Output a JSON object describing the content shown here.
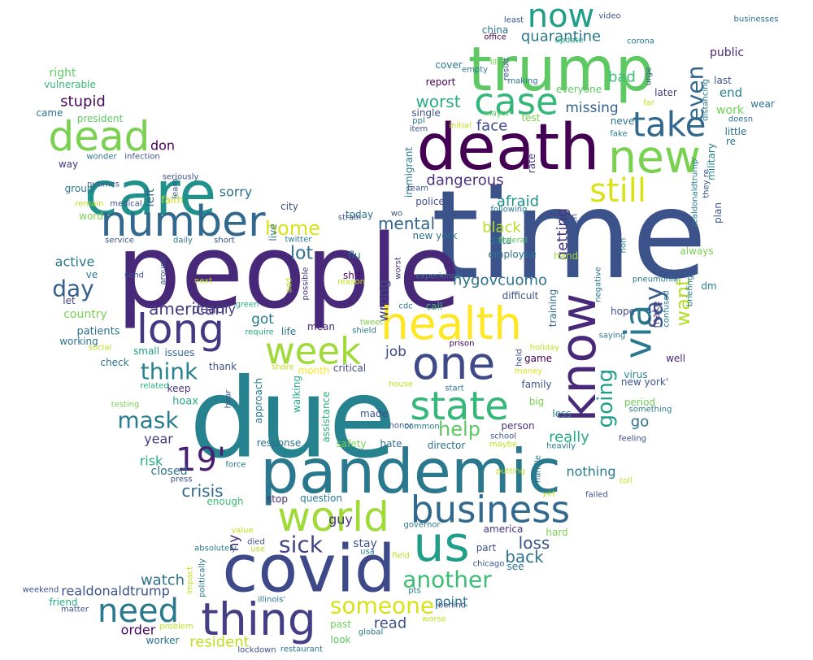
{
  "wordcloud": {
    "words": [
      {
        "text": "time",
        "color": "#3b528b"
      },
      {
        "text": "people",
        "color": "#482878"
      },
      {
        "text": "due",
        "color": "#26828e"
      },
      {
        "text": "death",
        "color": "#440154"
      },
      {
        "text": "trump",
        "color": "#5ec962"
      },
      {
        "text": "pandemic",
        "color": "#2a788e"
      },
      {
        "text": "covid",
        "color": "#3e4989"
      },
      {
        "text": "care",
        "color": "#21918c"
      },
      {
        "text": "know",
        "color": "#482878"
      },
      {
        "text": "new",
        "color": "#7ad151"
      },
      {
        "text": "health",
        "color": "#fde725"
      },
      {
        "text": "one",
        "color": "#3e4989"
      },
      {
        "text": "number",
        "color": "#31688e"
      },
      {
        "text": "long",
        "color": "#443983"
      },
      {
        "text": "state",
        "color": "#35b779"
      },
      {
        "text": "world",
        "color": "#a0da39"
      },
      {
        "text": "business",
        "color": "#31688e"
      },
      {
        "text": "us",
        "color": "#1f9e89"
      },
      {
        "text": "thing",
        "color": "#433e85"
      },
      {
        "text": "dead",
        "color": "#7ad151"
      },
      {
        "text": "case",
        "color": "#35b779"
      },
      {
        "text": "take",
        "color": "#31688e"
      },
      {
        "text": "week",
        "color": "#a0da39"
      },
      {
        "text": "via",
        "color": "#2a788e"
      },
      {
        "text": "now",
        "color": "#1f9e89"
      },
      {
        "text": "need",
        "color": "#2a788e"
      },
      {
        "text": "still",
        "color": "#d8e219"
      },
      {
        "text": "someone",
        "color": "#d8e219"
      },
      {
        "text": "even",
        "color": "#31688e"
      },
      {
        "text": "mask",
        "color": "#287c8e"
      },
      {
        "text": "19'",
        "color": "#481f70"
      },
      {
        "text": "day",
        "color": "#355f8d"
      },
      {
        "text": "think",
        "color": "#26828e"
      },
      {
        "text": "going",
        "color": "#1f9e89"
      },
      {
        "text": "say",
        "color": "#38588c"
      },
      {
        "text": "sick",
        "color": "#414487"
      },
      {
        "text": "help",
        "color": "#5ec962"
      },
      {
        "text": "another",
        "color": "#3dbc74"
      },
      {
        "text": "home",
        "color": "#d8e219"
      },
      {
        "text": "want",
        "color": "#b5de2b"
      },
      {
        "text": "american",
        "color": "#443983"
      },
      {
        "text": "nygovcuomo",
        "color": "#2c728e"
      },
      {
        "text": "back",
        "color": "#2c728e"
      },
      {
        "text": "loss",
        "color": "#3b528b"
      },
      {
        "text": "crisis",
        "color": "#31688e"
      },
      {
        "text": "lot",
        "color": "#2c728e"
      },
      {
        "text": "mental",
        "color": "#33638d"
      },
      {
        "text": "quarantine",
        "color": "#2a788e"
      },
      {
        "text": "missing",
        "color": "#33638d"
      },
      {
        "text": "face",
        "color": "#3e4989"
      },
      {
        "text": "bad",
        "color": "#3dbc74"
      },
      {
        "text": "worst",
        "color": "#29af7f"
      },
      {
        "text": "dangerous",
        "color": "#46327e"
      },
      {
        "text": "afraid",
        "color": "#218f8d"
      },
      {
        "text": "getting",
        "color": "#46327e"
      },
      {
        "text": "black",
        "color": "#b5de2b"
      },
      {
        "text": "stupid",
        "color": "#46085c"
      },
      {
        "text": "don",
        "color": "#440154"
      },
      {
        "text": "sorry",
        "color": "#2c728e"
      },
      {
        "text": "year",
        "color": "#453781"
      },
      {
        "text": "watch",
        "color": "#2c728e"
      },
      {
        "text": "realdonaldtrump",
        "color": "#3b528b"
      },
      {
        "text": "resident",
        "color": "#c2df23"
      },
      {
        "text": "order",
        "color": "#46085c"
      },
      {
        "text": "nothing",
        "color": "#2a788e"
      },
      {
        "text": "really",
        "color": "#25ab82"
      },
      {
        "text": "go",
        "color": "#2c728e"
      },
      {
        "text": "risk",
        "color": "#25ab82"
      },
      {
        "text": "closed",
        "color": "#2c728e"
      },
      {
        "text": "active",
        "color": "#2a788e"
      },
      {
        "text": "deadly",
        "color": "#433e85"
      },
      {
        "text": "got",
        "color": "#287c8e"
      },
      {
        "text": "wrong",
        "color": "#414487"
      },
      {
        "text": "job",
        "color": "#3e4989"
      },
      {
        "text": "read",
        "color": "#3b528b"
      },
      {
        "text": "point",
        "color": "#2a788e"
      },
      {
        "text": "ny",
        "color": "#482878"
      },
      {
        "text": "guy",
        "color": "#46327e"
      },
      {
        "text": "stay",
        "color": "#3b528b"
      },
      {
        "text": "left",
        "color": "#33638d"
      },
      {
        "text": "end",
        "color": "#26828e"
      },
      {
        "text": "public",
        "color": "#482878"
      },
      {
        "text": "work",
        "color": "#6ece58"
      },
      {
        "text": "right",
        "color": "#5ec962"
      },
      {
        "text": "vulnerable",
        "color": "#35b779"
      },
      {
        "text": "president",
        "color": "#5ec962"
      },
      {
        "text": "came",
        "color": "#2c728e"
      },
      {
        "text": "country",
        "color": "#7ad151"
      },
      {
        "text": "patients",
        "color": "#2c728e"
      },
      {
        "text": "working",
        "color": "#2c728e"
      },
      {
        "text": "check",
        "color": "#2c728e"
      },
      {
        "text": "hoax",
        "color": "#25ab82"
      },
      {
        "text": "keep",
        "color": "#46327e"
      },
      {
        "text": "thank",
        "color": "#3b528b"
      },
      {
        "text": "small",
        "color": "#1f9e89"
      },
      {
        "text": "issues",
        "color": "#31688e"
      },
      {
        "text": "approach",
        "color": "#287c8e"
      },
      {
        "text": "walking",
        "color": "#22a884"
      },
      {
        "text": "assistance",
        "color": "#29af7f"
      },
      {
        "text": "month",
        "color": "#fde725"
      },
      {
        "text": "critical",
        "color": "#3e4989"
      },
      {
        "text": "mean",
        "color": "#482878"
      },
      {
        "text": "life",
        "color": "#2a788e"
      },
      {
        "text": "city",
        "color": "#3b528b"
      },
      {
        "text": "live",
        "color": "#2a788e"
      },
      {
        "text": "flu",
        "color": "#2c728e"
      },
      {
        "text": "today",
        "color": "#2c728e"
      },
      {
        "text": "new york",
        "color": "#2c728e"
      },
      {
        "text": "shit",
        "color": "#46085c"
      },
      {
        "text": "data",
        "color": "#2a788e"
      },
      {
        "text": "employee",
        "color": "#2c728e"
      },
      {
        "text": "difficult",
        "color": "#3b528b"
      },
      {
        "text": "call",
        "color": "#3dbc74"
      },
      {
        "text": "hand",
        "color": "#a0da39"
      },
      {
        "text": "training",
        "color": "#31688e"
      },
      {
        "text": "hope",
        "color": "#3e4989"
      },
      {
        "text": "make",
        "color": "#46327e"
      },
      {
        "text": "new york'",
        "color": "#3b528b"
      },
      {
        "text": "virus",
        "color": "#26828e"
      },
      {
        "text": "family",
        "color": "#3b528b"
      },
      {
        "text": "game",
        "color": "#440154"
      },
      {
        "text": "period",
        "color": "#6ece58"
      },
      {
        "text": "big",
        "color": "#7ad151"
      },
      {
        "text": "less",
        "color": "#26828e"
      },
      {
        "text": "person",
        "color": "#46327e"
      },
      {
        "text": "made",
        "color": "#3b528b"
      },
      {
        "text": "hate",
        "color": "#2c728e"
      },
      {
        "text": "safety",
        "color": "#7ad151"
      },
      {
        "text": "director",
        "color": "#2c728e"
      },
      {
        "text": "response",
        "color": "#2c728e"
      },
      {
        "text": "question",
        "color": "#2a788e"
      },
      {
        "text": "enough",
        "color": "#3dbc74"
      },
      {
        "text": "stop",
        "color": "#482878"
      },
      {
        "text": "america",
        "color": "#46327e"
      },
      {
        "text": "part",
        "color": "#3b528b"
      },
      {
        "text": "see",
        "color": "#2c728e"
      },
      {
        "text": "hard",
        "color": "#7ad151"
      },
      {
        "text": "well",
        "color": "#482878"
      },
      {
        "text": "always",
        "color": "#7ad151"
      },
      {
        "text": "dm",
        "color": "#26828e"
      },
      {
        "text": "plan",
        "color": "#3b528b"
      },
      {
        "text": "military",
        "color": "#26828e"
      },
      {
        "text": "re",
        "color": "#2c728e"
      },
      {
        "text": "little",
        "color": "#2c728e"
      },
      {
        "text": "wear",
        "color": "#2c728e"
      },
      {
        "text": "last",
        "color": "#3b528b"
      },
      {
        "text": "later",
        "color": "#433e85"
      },
      {
        "text": "everyone",
        "color": "#5ec962"
      },
      {
        "text": "report",
        "color": "#440154"
      },
      {
        "text": "cover",
        "color": "#2a788e"
      },
      {
        "text": "single",
        "color": "#3b528b"
      },
      {
        "text": "china",
        "color": "#2c728e"
      },
      {
        "text": "never",
        "color": "#2c728e"
      },
      {
        "text": "test",
        "color": "#7ad151"
      },
      {
        "text": "rate",
        "color": "#433e85"
      },
      {
        "text": "police",
        "color": "#3b528b"
      },
      {
        "text": "immigrant",
        "color": "#2a788e"
      },
      {
        "text": "worker",
        "color": "#2c728e"
      },
      {
        "text": "look",
        "color": "#5ec962"
      },
      {
        "text": "past",
        "color": "#6ece58"
      },
      {
        "text": "friend",
        "color": "#25ab82"
      },
      {
        "text": "weekend",
        "color": "#3b528b"
      },
      {
        "text": "way",
        "color": "#46327e"
      },
      {
        "text": "group",
        "color": "#2a788e"
      },
      {
        "text": "faith",
        "color": "#c2df23"
      },
      {
        "text": "let",
        "color": "#433e85"
      },
      {
        "text": "word",
        "color": "#7ad151"
      },
      {
        "text": "ve",
        "color": "#2a788e"
      },
      {
        "text": "least",
        "color": "#3b528b"
      },
      {
        "text": "video",
        "color": "#3b528b"
      },
      {
        "text": "office",
        "color": "#440154"
      },
      {
        "text": "update",
        "color": "#25ab82"
      },
      {
        "text": "corona",
        "color": "#2a788e"
      },
      {
        "text": "businesses",
        "color": "#2c728e"
      },
      {
        "text": "ill",
        "color": "#7ad151"
      },
      {
        "text": "empty",
        "color": "#2a788e"
      },
      {
        "text": "result",
        "color": "#3b528b"
      },
      {
        "text": "ppl",
        "color": "#2a788e"
      },
      {
        "text": "mayor",
        "color": "#5ec962"
      },
      {
        "text": "item",
        "color": "#3b528b"
      },
      {
        "text": "initial",
        "color": "#c2df23"
      },
      {
        "text": "making",
        "color": "#2c728e"
      },
      {
        "text": "far",
        "color": "#c2df23"
      },
      {
        "text": "urge",
        "color": "#3b528b"
      },
      {
        "text": "doesn",
        "color": "#2c728e"
      },
      {
        "text": "distancing",
        "color": "#2a788e"
      },
      {
        "text": "fake",
        "color": "#2a788e"
      },
      {
        "text": "team",
        "color": "#3b528b"
      },
      {
        "text": "following",
        "color": "#2a788e"
      },
      {
        "text": "wo",
        "color": "#3b528b"
      },
      {
        "text": "much",
        "color": "#3b528b"
      },
      {
        "text": "strain",
        "color": "#3b528b"
      },
      {
        "text": "twitter",
        "color": "#2a788e"
      },
      {
        "text": "federal",
        "color": "#5ec962"
      },
      {
        "text": "add",
        "color": "#c2df23"
      },
      {
        "text": "possible",
        "color": "#46327e"
      },
      {
        "text": "worst",
        "color": "#46327e"
      },
      {
        "text": "experience",
        "color": "#2a788e"
      },
      {
        "text": "reason",
        "color": "#c2df23"
      },
      {
        "text": "green",
        "color": "#29af7f"
      },
      {
        "text": "require",
        "color": "#25ab82"
      },
      {
        "text": "shield",
        "color": "#2a788e"
      },
      {
        "text": "tweet",
        "color": "#7ad151"
      },
      {
        "text": "cdc",
        "color": "#2a788e"
      },
      {
        "text": "prison",
        "color": "#440154"
      },
      {
        "text": "share",
        "color": "#c2df23"
      },
      {
        "text": "house",
        "color": "#c2df23"
      },
      {
        "text": "start",
        "color": "#2a788e"
      },
      {
        "text": "held",
        "color": "#3b528b"
      },
      {
        "text": "money",
        "color": "#d8e219"
      },
      {
        "text": "holiday",
        "color": "#c2df23"
      },
      {
        "text": "saying",
        "color": "#2a788e"
      },
      {
        "text": "confused",
        "color": "#2a788e"
      },
      {
        "text": "briefing",
        "color": "#2a788e"
      },
      {
        "text": "pneumonia",
        "color": "#2a788e"
      },
      {
        "text": "non",
        "color": "#2a788e"
      },
      {
        "text": "negative",
        "color": "#2a788e"
      },
      {
        "text": "realdonaldtrump'",
        "color": "#2a788e"
      },
      {
        "text": "they re",
        "color": "#3b528b"
      },
      {
        "text": "something",
        "color": "#2a788e"
      },
      {
        "text": "feeling",
        "color": "#3b528b"
      },
      {
        "text": "school",
        "color": "#3b528b"
      },
      {
        "text": "maybe",
        "color": "#c2df23"
      },
      {
        "text": "heavily",
        "color": "#2a788e"
      },
      {
        "text": "handle",
        "color": "#2a788e"
      },
      {
        "text": "putting",
        "color": "#c2df23"
      },
      {
        "text": "toll",
        "color": "#c2df23"
      },
      {
        "text": "yet",
        "color": "#c2df23"
      },
      {
        "text": "failed",
        "color": "#3b528b"
      },
      {
        "text": "honor",
        "color": "#3b528b"
      },
      {
        "text": "common",
        "color": "#2a788e"
      },
      {
        "text": "pts",
        "color": "#2a788e"
      },
      {
        "text": "behind",
        "color": "#3b528b"
      },
      {
        "text": "worse",
        "color": "#c2df23"
      },
      {
        "text": "global",
        "color": "#2a788e"
      },
      {
        "text": "chicago",
        "color": "#3b528b"
      },
      {
        "text": "field",
        "color": "#c2df23"
      },
      {
        "text": "usa",
        "color": "#2a788e"
      },
      {
        "text": "governor",
        "color": "#2a788e"
      },
      {
        "text": "illinois'",
        "color": "#2a788e"
      },
      {
        "text": "restaurant",
        "color": "#2a788e"
      },
      {
        "text": "lockdown",
        "color": "#3b528b"
      },
      {
        "text": "problem",
        "color": "#c2df23"
      },
      {
        "text": "matter",
        "color": "#3b528b"
      },
      {
        "text": "impact",
        "color": "#c2df23"
      },
      {
        "text": "politically",
        "color": "#2a788e"
      },
      {
        "text": "absolutely",
        "color": "#2a788e"
      },
      {
        "text": "died",
        "color": "#3b528b"
      },
      {
        "text": "use",
        "color": "#c2df23"
      },
      {
        "text": "value",
        "color": "#c2df23"
      },
      {
        "text": "force",
        "color": "#2a788e"
      },
      {
        "text": "press",
        "color": "#3b528b"
      },
      {
        "text": "testing",
        "color": "#7ad151"
      },
      {
        "text": "related",
        "color": "#29af7f"
      },
      {
        "text": "hear",
        "color": "#3b528b"
      },
      {
        "text": "social",
        "color": "#c2df23"
      },
      {
        "text": "wonder",
        "color": "#2a788e"
      },
      {
        "text": "infection",
        "color": "#3b528b"
      },
      {
        "text": "seriously",
        "color": "#3b528b"
      },
      {
        "text": "nytimes",
        "color": "#3b528b"
      },
      {
        "text": "learn",
        "color": "#3b528b"
      },
      {
        "text": "remain",
        "color": "#c2df23"
      },
      {
        "text": "medical",
        "color": "#3b528b"
      },
      {
        "text": "service",
        "color": "#3b528b"
      },
      {
        "text": "around",
        "color": "#3b528b"
      },
      {
        "text": "daily",
        "color": "#2a788e"
      },
      {
        "text": "short",
        "color": "#3b528b"
      },
      {
        "text": "send",
        "color": "#3b528b"
      },
      {
        "text": "next",
        "color": "#c2df23"
      },
      {
        "text": "elderly",
        "color": "#2a788e"
      }
    ]
  }
}
